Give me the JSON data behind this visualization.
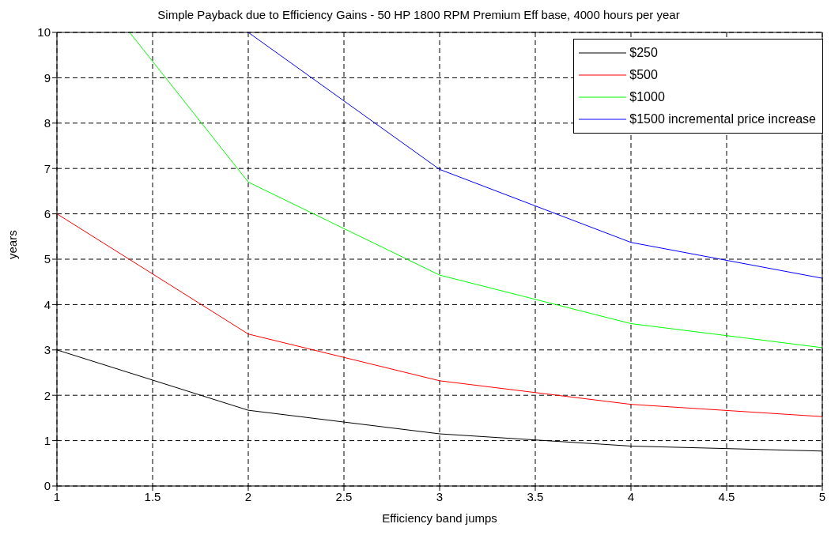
{
  "chart_data": {
    "type": "line",
    "title": "Simple Payback due to Efficiency Gains - 50 HP 1800 RPM Premium Eff base, 4000 hours per year",
    "xlabel": "Efficiency band jumps",
    "ylabel": "years",
    "x": [
      1,
      2,
      3,
      4,
      5
    ],
    "series": [
      {
        "name": "$250",
        "color": "#000000",
        "values": [
          3,
          1.67,
          1.15,
          0.88,
          0.77
        ]
      },
      {
        "name": "$500",
        "color": "#ff0000",
        "values": [
          6,
          3.35,
          2.32,
          1.8,
          1.53
        ]
      },
      {
        "name": "$1000",
        "color": "#00ff00",
        "x": [
          1.38,
          2,
          3,
          4,
          5
        ],
        "values": [
          10,
          6.7,
          4.65,
          3.58,
          3.05
        ]
      },
      {
        "name": "$1500 incremental price increase",
        "color": "#0000ff",
        "x": [
          2,
          3,
          4,
          5
        ],
        "values": [
          10,
          6.98,
          5.37,
          4.58
        ]
      }
    ],
    "xlim": [
      1,
      5
    ],
    "xticks": [
      1,
      1.5,
      2,
      2.5,
      3,
      3.5,
      4,
      4.5,
      5
    ],
    "ylim": [
      0,
      10
    ],
    "yticks": [
      0,
      1,
      2,
      3,
      4,
      5,
      6,
      7,
      8,
      9,
      10
    ],
    "grid": true,
    "legend": "top right",
    "marker": "none",
    "line_style": "solid"
  }
}
